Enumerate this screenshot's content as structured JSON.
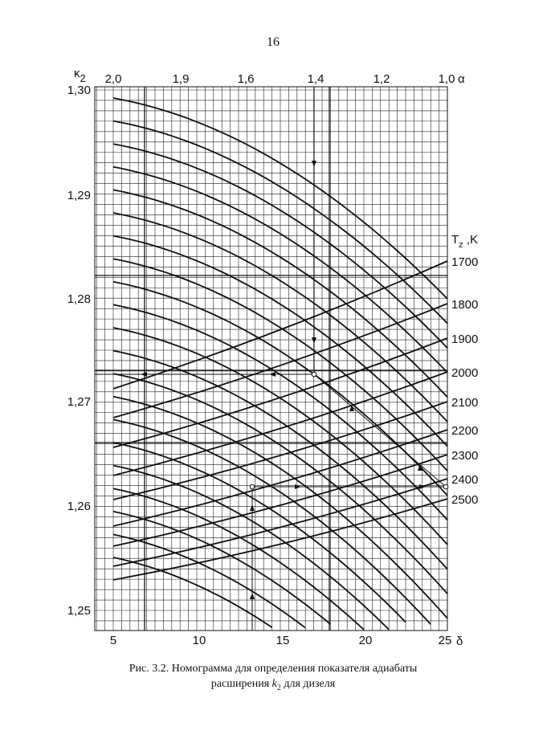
{
  "page_number": "16",
  "figure": {
    "left_axis": {
      "symbol": "κ",
      "subscript": "2",
      "ticks": [
        "1,30",
        "1,29",
        "1,28",
        "1,27",
        "1,26",
        "1,25"
      ]
    },
    "top_axis": {
      "symbol": "α",
      "ticks": [
        "2,0",
        "1,9",
        "1,6",
        "1,4",
        "1,2",
        "1,0"
      ]
    },
    "bottom_axis": {
      "symbol": "δ",
      "ticks": [
        "5",
        "10",
        "15",
        "20",
        "25"
      ]
    },
    "right_axis": {
      "symbol": "T",
      "subscript": "z",
      "unit": " ,K",
      "ticks": [
        "1700",
        "1800",
        "1900",
        "2000",
        "2100",
        "2200",
        "2300",
        "2400",
        "2500"
      ]
    }
  },
  "caption": {
    "line1": "Рис. 3.2. Номограмма для определения показателя адиабаты",
    "line2_start": "расширения ",
    "line2_symbol": "k",
    "line2_subscript": "2",
    "line2_end": " для дизеля"
  }
}
